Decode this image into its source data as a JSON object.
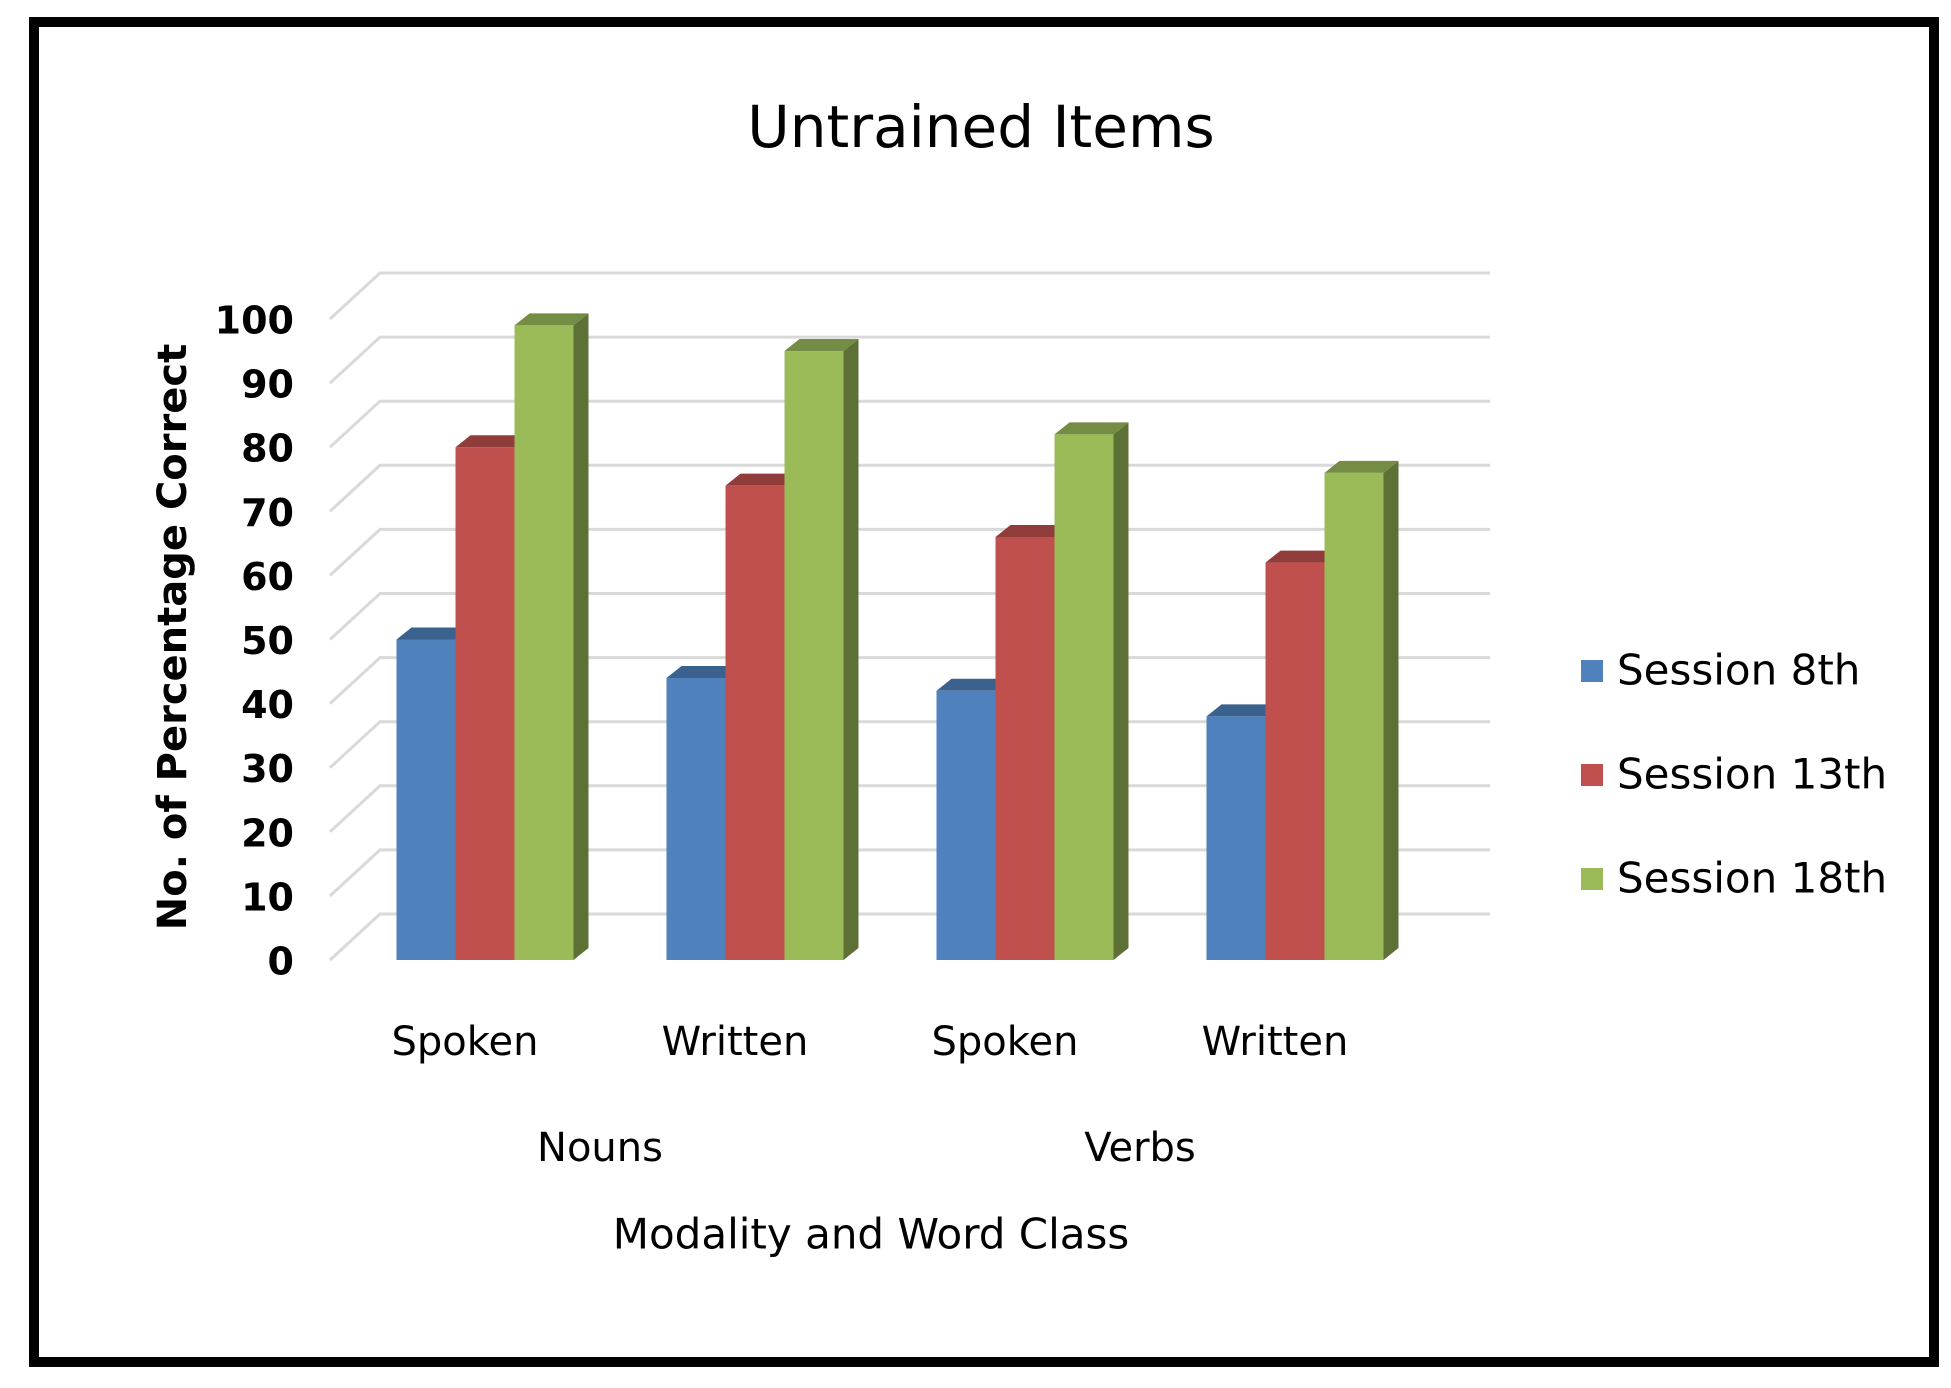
{
  "chart_data": {
    "type": "bar3d",
    "title": "Untrained Items",
    "y_label": "No. of Percentage Correct",
    "x_label": "Modality and Word Class",
    "categories": [
      "Spoken",
      "Written",
      "Spoken",
      "Written"
    ],
    "groups": [
      "Nouns",
      "Verbs"
    ],
    "series": [
      {
        "name": "Session 8th",
        "color": "#4f81bd",
        "values": [
          50,
          44,
          42,
          38
        ]
      },
      {
        "name": "Session 13th",
        "color": "#c0504d",
        "values": [
          80,
          74,
          66,
          62
        ]
      },
      {
        "name": "Session 18th",
        "color": "#9bbb59",
        "values": [
          99,
          95,
          82,
          76
        ]
      }
    ],
    "ylim": [
      0,
      100
    ],
    "yticks": [
      0,
      10,
      20,
      30,
      40,
      50,
      60,
      70,
      80,
      90,
      100
    ],
    "grid": true,
    "legend": "right"
  }
}
